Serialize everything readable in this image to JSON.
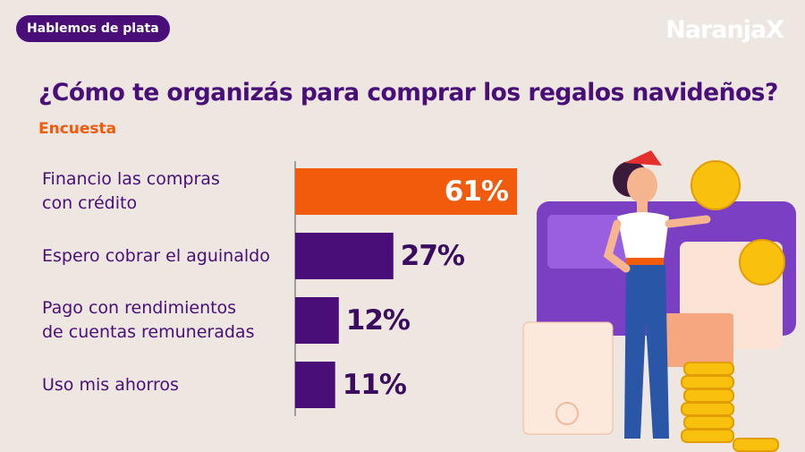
{
  "chart_data": {
    "type": "bar",
    "badge": "Hablemos de plata",
    "brand": "NaranjaX",
    "title": "¿Cómo te organizás para comprar los regalos navideños?",
    "subtitle": "Encuesta",
    "categories": [
      "Financio las compras\ncon crédito",
      "Espero cobrar el aguinaldo",
      "Pago con rendimientos\nde cuentas remuneradas",
      "Uso mis ahorros"
    ],
    "values": [
      61,
      27,
      12,
      11
    ],
    "value_labels": [
      "61%",
      "27%",
      "12%",
      "11%"
    ],
    "colors": [
      "#f25a0c",
      "#4a0e78",
      "#4a0e78",
      "#4a0e78"
    ]
  }
}
